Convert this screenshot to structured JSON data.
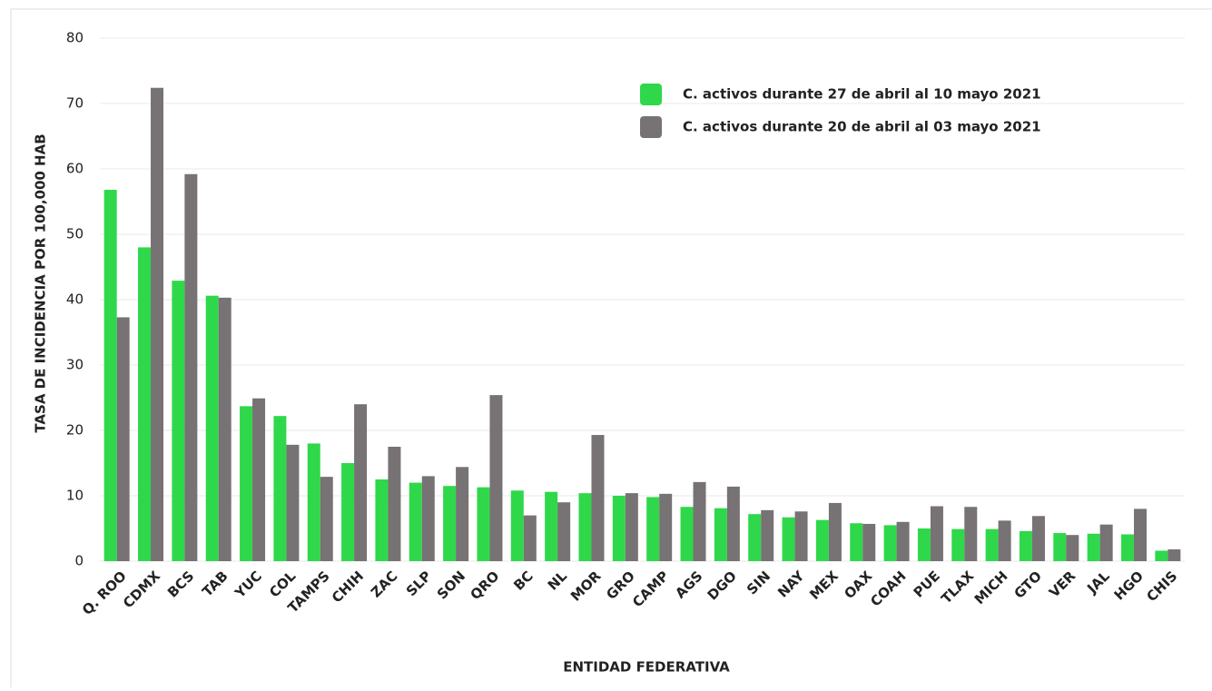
{
  "chart_data": {
    "type": "bar",
    "y_label": "TASA DE INCIDENCIA  POR 100,000 HAB",
    "x_label": "ENTIDAD FEDERATIVA",
    "categories": [
      "Q. ROO",
      "CDMX",
      "BCS",
      "TAB",
      "YUC",
      "COL",
      "TAMPS",
      "CHIH",
      "ZAC",
      "SLP",
      "SON",
      "QRO",
      "BC",
      "NL",
      "MOR",
      "GRO",
      "CAMP",
      "AGS",
      "DGO",
      "SIN",
      "NAY",
      "MEX",
      "OAX",
      "COAH",
      "PUE",
      "TLAX",
      "MICH",
      "GTO",
      "VER",
      "JAL",
      "HGO",
      "CHIS"
    ],
    "series": [
      {
        "name": "C. activos durante 27 de abril al 10 mayo 2021",
        "color": "#2fd84a",
        "values": [
          56.8,
          48.0,
          42.9,
          40.6,
          23.7,
          22.2,
          18.0,
          15.0,
          12.5,
          12.0,
          11.5,
          11.3,
          10.8,
          10.6,
          10.4,
          10.0,
          9.8,
          8.3,
          8.1,
          7.2,
          6.7,
          6.3,
          5.8,
          5.5,
          5.0,
          4.9,
          4.9,
          4.6,
          4.3,
          4.2,
          4.1,
          1.6
        ]
      },
      {
        "name": "C. activos durante 20 de abril al 03 mayo 2021",
        "color": "#777273",
        "values": [
          37.3,
          72.4,
          59.2,
          40.3,
          24.9,
          17.8,
          12.9,
          24.0,
          17.5,
          13.0,
          14.4,
          25.4,
          7.0,
          9.0,
          19.3,
          10.4,
          10.3,
          12.1,
          11.4,
          7.8,
          7.6,
          8.9,
          5.7,
          6.0,
          8.4,
          8.3,
          6.2,
          6.9,
          4.0,
          5.6,
          8.0,
          1.8
        ]
      }
    ],
    "ylim": [
      0,
      80
    ],
    "yticks": [
      0,
      10,
      20,
      30,
      40,
      50,
      60,
      70,
      80
    ],
    "grid": true,
    "legend": "top-right"
  }
}
